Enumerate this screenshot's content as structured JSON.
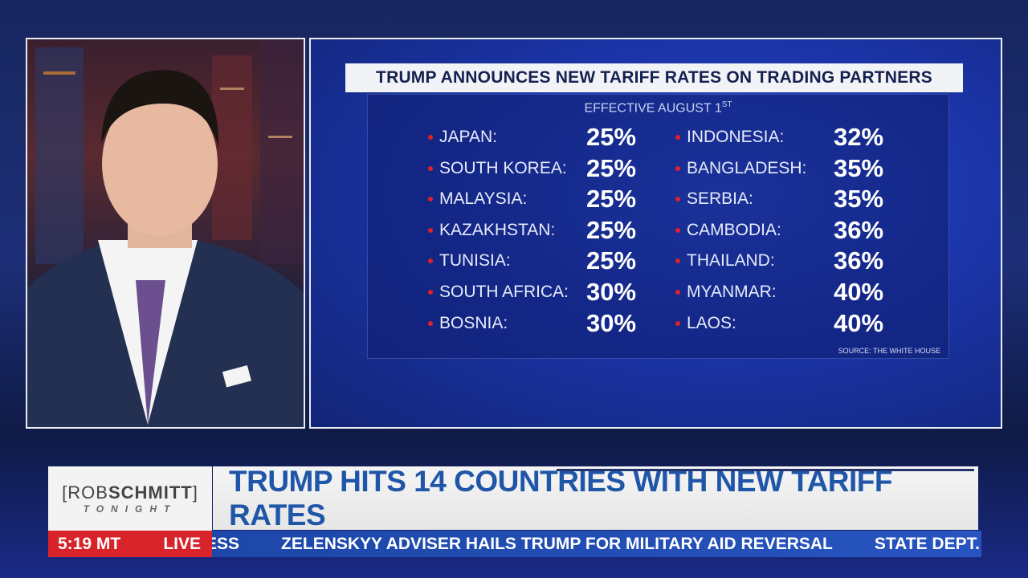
{
  "graphic": {
    "title": "TRUMP ANNOUNCES NEW TARIFF RATES ON TRADING PARTNERS",
    "subtitle": "EFFECTIVE AUGUST 1",
    "subtitle_sup": "ST",
    "source": "SOURCE: THE WHITE HOUSE",
    "bullet_color": "#e0202a",
    "left": [
      {
        "country": "JAPAN:",
        "rate": "25%"
      },
      {
        "country": "SOUTH KOREA:",
        "rate": "25%"
      },
      {
        "country": "MALAYSIA:",
        "rate": "25%"
      },
      {
        "country": "KAZAKHSTAN:",
        "rate": "25%"
      },
      {
        "country": "TUNISIA:",
        "rate": "25%"
      },
      {
        "country": "SOUTH AFRICA:",
        "rate": "30%"
      },
      {
        "country": "BOSNIA:",
        "rate": "30%"
      }
    ],
    "right": [
      {
        "country": "INDONESIA:",
        "rate": "32%"
      },
      {
        "country": "BANGLADESH:",
        "rate": "35%"
      },
      {
        "country": "SERBIA:",
        "rate": "35%"
      },
      {
        "country": "CAMBODIA:",
        "rate": "36%"
      },
      {
        "country": "THAILAND:",
        "rate": "36%"
      },
      {
        "country": "MYANMAR:",
        "rate": "40%"
      },
      {
        "country": "LAOS:",
        "rate": "40%"
      }
    ]
  },
  "lower_third": {
    "logo_top_light": "ROB",
    "logo_top_bold": "SCHMITT",
    "logo_bottom": "TONIGHT",
    "headline": "TRUMP HITS 14 COUNTRIES WITH NEW TARIFF RATES",
    "time": "5:19 MT",
    "live": "LIVE",
    "ticker": [
      "ESS",
      "ZELENSKYY ADVISER HAILS TRUMP FOR MILITARY AID REVERSAL",
      "STATE DEPT.: HA"
    ],
    "headline_color": "#1f56a8",
    "live_color": "#d8232a"
  }
}
